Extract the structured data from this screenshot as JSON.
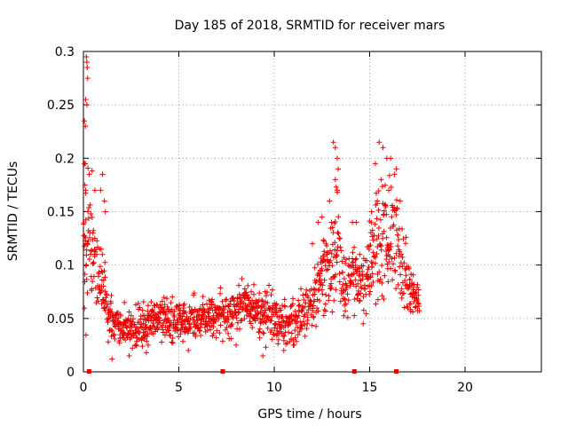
{
  "chart_data": {
    "type": "scatter",
    "title": "Day 185 of 2018, SRMTID for receiver mars",
    "xlabel": "GPS time / hours",
    "ylabel": "SRMTID / TECUs",
    "xlim": [
      0,
      24
    ],
    "ylim": [
      0,
      0.3
    ],
    "x_ticks": [
      0,
      5,
      10,
      15,
      20
    ],
    "x_tick_labels": [
      "0",
      "5",
      "10",
      "15",
      "20"
    ],
    "y_ticks": [
      0,
      0.05,
      0.1,
      0.15,
      0.2,
      0.25,
      0.3
    ],
    "y_tick_labels": [
      "0",
      "0.05",
      "0.1",
      "0.15",
      "0.2",
      "0.25",
      "0.3"
    ],
    "grid": true,
    "marker": "+",
    "series_color": "#ee0000",
    "gap_markers_x": [
      0.3,
      7.3,
      14.2,
      16.4
    ],
    "envelope": {
      "x": [
        0.0,
        0.3,
        0.6,
        1.0,
        1.3,
        1.6,
        2.0,
        3.0,
        4.0,
        5.0,
        6.0,
        7.0,
        7.5,
        8.5,
        9.5,
        10.5,
        11.5,
        12.0,
        12.5,
        13.0,
        13.3,
        13.6,
        14.2,
        14.6,
        15.0,
        15.5,
        16.0,
        16.5,
        17.0,
        17.6
      ],
      "mid": [
        0.11,
        0.13,
        0.1,
        0.08,
        0.055,
        0.045,
        0.04,
        0.045,
        0.05,
        0.048,
        0.05,
        0.052,
        0.055,
        0.06,
        0.055,
        0.045,
        0.055,
        0.07,
        0.09,
        0.1,
        0.12,
        0.08,
        0.09,
        0.08,
        0.1,
        0.12,
        0.13,
        0.11,
        0.085,
        0.065
      ],
      "spread": [
        0.09,
        0.12,
        0.07,
        0.05,
        0.035,
        0.025,
        0.025,
        0.03,
        0.03,
        0.03,
        0.03,
        0.03,
        0.035,
        0.035,
        0.035,
        0.03,
        0.035,
        0.04,
        0.05,
        0.06,
        0.08,
        0.05,
        0.05,
        0.05,
        0.06,
        0.08,
        0.08,
        0.07,
        0.04,
        0.025
      ]
    },
    "points": [
      [
        0.05,
        0.235
      ],
      [
        0.1,
        0.23
      ],
      [
        0.15,
        0.295
      ],
      [
        0.18,
        0.29
      ],
      [
        0.2,
        0.285
      ],
      [
        0.22,
        0.275
      ],
      [
        0.12,
        0.255
      ],
      [
        0.18,
        0.25
      ],
      [
        0.05,
        0.195
      ],
      [
        0.1,
        0.195
      ],
      [
        0.08,
        0.175
      ],
      [
        0.12,
        0.17
      ],
      [
        0.6,
        0.17
      ],
      [
        0.9,
        0.17
      ],
      [
        1.0,
        0.185
      ],
      [
        1.1,
        0.16
      ],
      [
        1.15,
        0.15
      ],
      [
        0.1,
        0.12
      ],
      [
        0.15,
        0.1
      ],
      [
        0.5,
        0.13
      ],
      [
        0.7,
        0.11
      ],
      [
        13.1,
        0.215
      ],
      [
        13.2,
        0.21
      ],
      [
        13.3,
        0.2
      ],
      [
        13.35,
        0.19
      ],
      [
        13.2,
        0.18
      ],
      [
        13.3,
        0.17
      ],
      [
        15.3,
        0.195
      ],
      [
        15.5,
        0.215
      ],
      [
        15.7,
        0.21
      ],
      [
        15.9,
        0.2
      ],
      [
        16.1,
        0.2
      ],
      [
        16.3,
        0.185
      ],
      [
        16.4,
        0.19
      ],
      [
        15.6,
        0.18
      ],
      [
        16.0,
        0.17
      ],
      [
        12.0,
        0.12
      ],
      [
        12.3,
        0.14
      ],
      [
        12.5,
        0.145
      ],
      [
        12.9,
        0.16
      ],
      [
        13.0,
        0.14
      ],
      [
        14.3,
        0.14
      ],
      [
        14.1,
        0.14
      ],
      [
        15.1,
        0.15
      ],
      [
        15.4,
        0.16
      ],
      [
        16.6,
        0.16
      ],
      [
        1.5,
        0.012
      ],
      [
        2.4,
        0.015
      ],
      [
        3.3,
        0.018
      ],
      [
        9.4,
        0.015
      ],
      [
        10.5,
        0.02
      ],
      [
        11.0,
        0.025
      ],
      [
        5.5,
        0.02
      ],
      [
        8.0,
        0.025
      ]
    ]
  }
}
